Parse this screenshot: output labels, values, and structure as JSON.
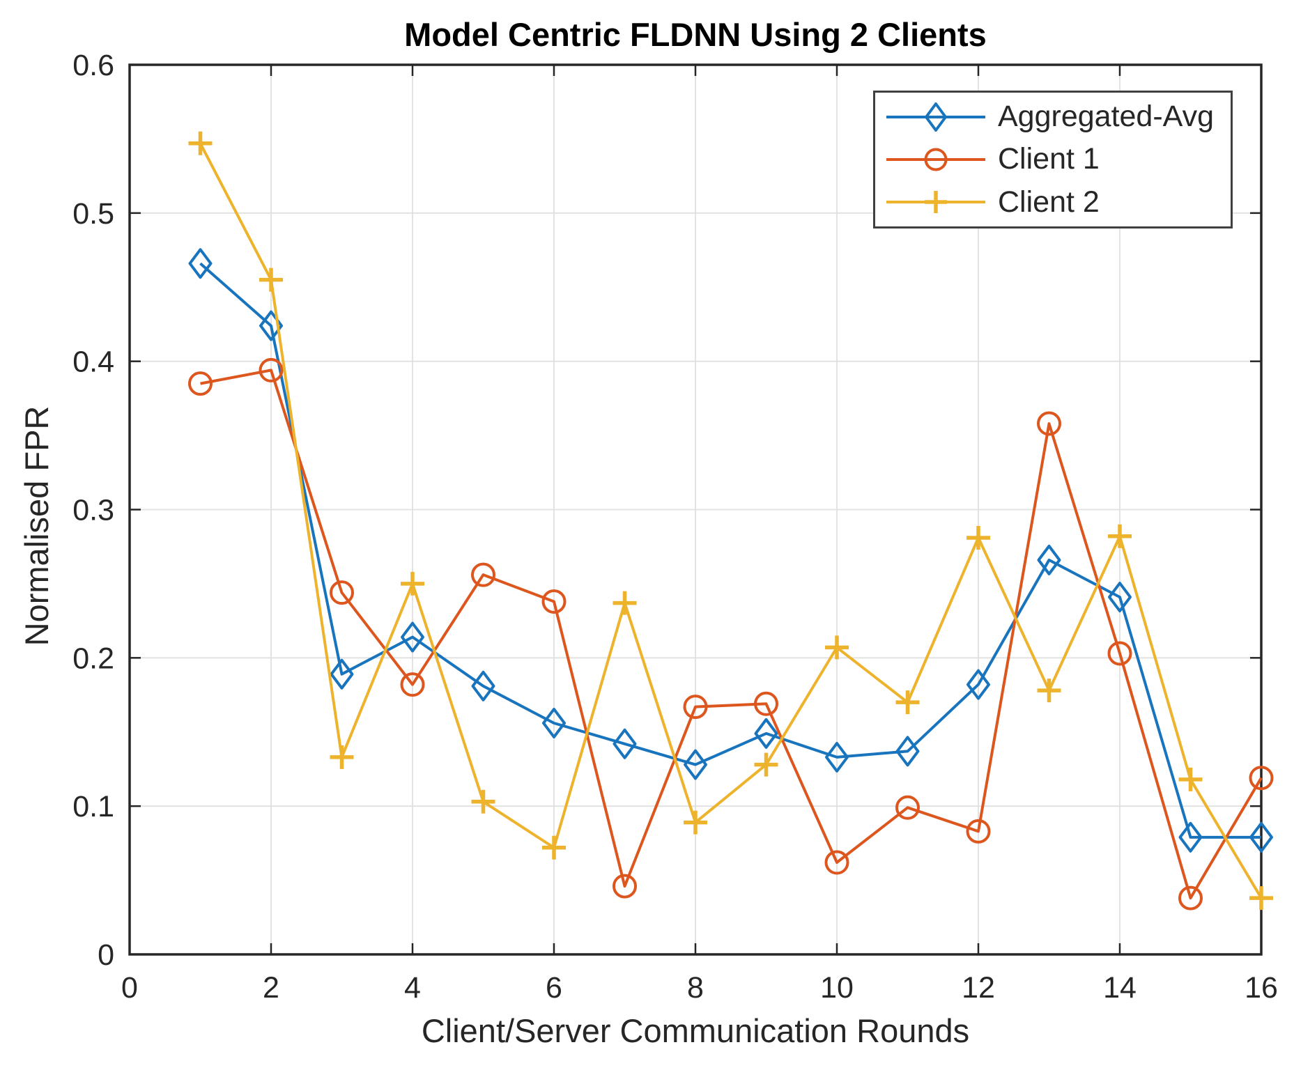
{
  "colors": {
    "axis": "#262626",
    "grid": "#E0E0E0",
    "background": "#FFFFFF",
    "series_blue": "#1974BE",
    "series_orange": "#DC561E",
    "series_yellow": "#EEB32C"
  },
  "chart_data": {
    "type": "line",
    "title": "Model Centric FLDNN Using 2 Clients",
    "xlabel": "Client/Server Communication Rounds",
    "ylabel": "Normalised FPR",
    "xlim": [
      0,
      16
    ],
    "ylim": [
      0,
      0.6
    ],
    "grid": true,
    "legend_position": "top-right",
    "x_ticks": [
      0,
      2,
      4,
      6,
      8,
      10,
      12,
      14,
      16
    ],
    "y_ticks": [
      0,
      0.1,
      0.2,
      0.3,
      0.4,
      0.5,
      0.6
    ],
    "y_tick_labels": [
      "0",
      "0.1",
      "0.2",
      "0.3",
      "0.4",
      "0.5",
      "0.6"
    ],
    "x": [
      1,
      2,
      3,
      4,
      5,
      6,
      7,
      8,
      9,
      10,
      11,
      12,
      13,
      14,
      15,
      16
    ],
    "series": [
      {
        "name": "Aggregated-Avg",
        "marker": "diamond",
        "color": "#1974BE",
        "values": [
          0.466,
          0.424,
          0.189,
          0.214,
          0.181,
          0.156,
          0.142,
          0.128,
          0.149,
          0.133,
          0.137,
          0.182,
          0.266,
          0.241,
          0.079,
          0.079
        ]
      },
      {
        "name": "Client 1",
        "marker": "circle",
        "color": "#DC561E",
        "values": [
          0.385,
          0.394,
          0.244,
          0.182,
          0.256,
          0.238,
          0.046,
          0.167,
          0.169,
          0.062,
          0.099,
          0.083,
          0.358,
          0.203,
          0.038,
          0.119
        ]
      },
      {
        "name": "Client 2",
        "marker": "plus",
        "color": "#EEB32C",
        "values": [
          0.547,
          0.455,
          0.133,
          0.25,
          0.103,
          0.072,
          0.237,
          0.089,
          0.128,
          0.207,
          0.17,
          0.281,
          0.178,
          0.282,
          0.118,
          0.038
        ]
      }
    ]
  }
}
